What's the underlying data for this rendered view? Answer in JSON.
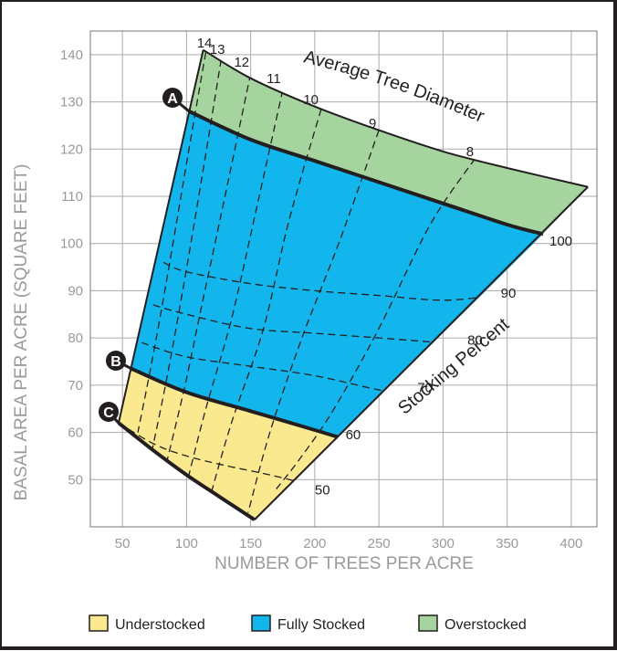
{
  "chart_data": {
    "type": "area",
    "title": "",
    "xlabel": "NUMBER OF TREES PER ACRE",
    "ylabel": "BASAL AREA PER ACRE (SQUARE FEET)",
    "xlim": [
      25,
      420
    ],
    "ylim": [
      40,
      145
    ],
    "x_ticks": [
      50,
      100,
      150,
      200,
      250,
      300,
      350,
      400
    ],
    "y_ticks": [
      50,
      60,
      70,
      80,
      90,
      100,
      110,
      120,
      130,
      140
    ],
    "grid": true,
    "colors": {
      "understocked": "#fbe98f",
      "fully_stocked": "#12b6ec",
      "overstocked": "#a6d49e",
      "grid": "#aaaaaa",
      "line": "#231f20"
    },
    "curves": {
      "A": {
        "label": "A",
        "points": [
          [
            102,
            128
          ],
          [
            150,
            122
          ],
          [
            200,
            117.5
          ],
          [
            250,
            113
          ],
          [
            300,
            108.5
          ],
          [
            350,
            104
          ],
          [
            378,
            102
          ]
        ]
      },
      "B": {
        "label": "B",
        "points": [
          [
            57,
            73.5
          ],
          [
            100,
            68.5
          ],
          [
            150,
            64.5
          ],
          [
            200,
            60.5
          ],
          [
            218,
            59
          ]
        ]
      },
      "C": {
        "label": "C",
        "points": [
          [
            47,
            62
          ],
          [
            75,
            56
          ],
          [
            100,
            51
          ],
          [
            125,
            46.5
          ],
          [
            153,
            41.5
          ]
        ]
      },
      "top": {
        "points": [
          [
            113,
            141
          ],
          [
            150,
            135
          ],
          [
            200,
            129
          ],
          [
            250,
            124
          ],
          [
            300,
            119.5
          ],
          [
            350,
            116
          ],
          [
            413,
            112
          ]
        ]
      }
    },
    "stocking_percent": {
      "label": "Stocking Percent",
      "lines": [
        {
          "label": "50",
          "points": [
            [
              47,
              62
            ],
            [
              75,
              57.5
            ],
            [
              100,
              55
            ],
            [
              130,
              53
            ],
            [
              165,
              51
            ],
            [
              195,
              49
            ]
          ],
          "label_at": [
            200,
            47.8
          ]
        },
        {
          "label": "60",
          "points": [
            [
              57,
              73.5
            ],
            [
              100,
              68.5
            ],
            [
              150,
              64.5
            ],
            [
              200,
              60.5
            ],
            [
              218,
              59
            ]
          ],
          "label_at": [
            224,
            59.5
          ]
        },
        {
          "label": "70",
          "points": [
            [
              65,
              79
            ],
            [
              100,
              76
            ],
            [
              150,
              74
            ],
            [
              200,
              72
            ],
            [
              250,
              69
            ],
            [
              275,
              68
            ]
          ],
          "label_at": [
            280,
            69.5
          ]
        },
        {
          "label": "80",
          "points": [
            [
              74,
              87
            ],
            [
              100,
              85
            ],
            [
              150,
              82
            ],
            [
              200,
              81
            ],
            [
              250,
              80
            ],
            [
              300,
              79
            ],
            [
              315,
              79
            ]
          ],
          "label_at": [
            319,
            79.5
          ]
        },
        {
          "label": "90",
          "points": [
            [
              82,
              96
            ],
            [
              100,
              94
            ],
            [
              150,
              91.5
            ],
            [
              200,
              90
            ],
            [
              250,
              89
            ],
            [
              300,
              88
            ],
            [
              340,
              89
            ]
          ],
          "label_at": [
            345,
            89.5
          ]
        },
        {
          "label": "100",
          "points": [
            [
              102,
              128
            ],
            [
              150,
              122
            ],
            [
              200,
              117.5
            ],
            [
              250,
              113
            ],
            [
              300,
              108.5
            ],
            [
              350,
              104
            ],
            [
              378,
              102
            ]
          ],
          "label_at": [
            383,
            100.5
          ]
        }
      ]
    },
    "average_tree_diameter": {
      "label": "Average Tree Diameter",
      "lines": [
        {
          "label": "14",
          "points": [
            [
              115,
              140.5
            ],
            [
              100,
              117
            ],
            [
              85,
              93
            ],
            [
              73,
              75
            ],
            [
              62,
              60
            ]
          ],
          "label_at": [
            114,
            141.5
          ]
        },
        {
          "label": "13",
          "points": [
            [
              127,
              139
            ],
            [
              112,
              114
            ],
            [
              97,
              90
            ],
            [
              85,
              72
            ],
            [
              73,
              56
            ]
          ],
          "label_at": [
            124,
            140.2
          ]
        },
        {
          "label": "12",
          "points": [
            [
              150,
              136
            ],
            [
              130,
              110
            ],
            [
              112,
              87
            ],
            [
              98,
              69
            ],
            [
              83,
              52
            ]
          ],
          "label_at": [
            143,
            137.5
          ]
        },
        {
          "label": "11",
          "points": [
            [
              175,
              132.5
            ],
            [
              155,
              108
            ],
            [
              135,
              84
            ],
            [
              115,
              65
            ],
            [
              100,
              49
            ]
          ],
          "label_at": [
            168,
            134
          ]
        },
        {
          "label": "10",
          "points": [
            [
              205,
              128.5
            ],
            [
              180,
              105
            ],
            [
              160,
              82
            ],
            [
              135,
              62
            ],
            [
              118,
              46
            ]
          ],
          "label_at": [
            197,
            129.5
          ]
        },
        {
          "label": "9",
          "points": [
            [
              250,
              124
            ],
            [
              220,
              101
            ],
            [
              190,
              80
            ],
            [
              165,
              60
            ],
            [
              148,
              43
            ]
          ],
          "label_at": [
            245,
            124.5
          ]
        },
        {
          "label": "8",
          "points": [
            [
              325,
              118
            ],
            [
              290,
              104
            ],
            [
              250,
              82
            ],
            [
              215,
              65
            ],
            [
              190,
              55
            ],
            [
              170,
              48
            ]
          ],
          "label_at": [
            321,
            118.5
          ]
        }
      ]
    }
  },
  "legend": [
    {
      "label": "Understocked",
      "color": "#fbe98f"
    },
    {
      "label": "Fully Stocked",
      "color": "#12b6ec"
    },
    {
      "label": "Overstocked",
      "color": "#a6d49e"
    }
  ]
}
